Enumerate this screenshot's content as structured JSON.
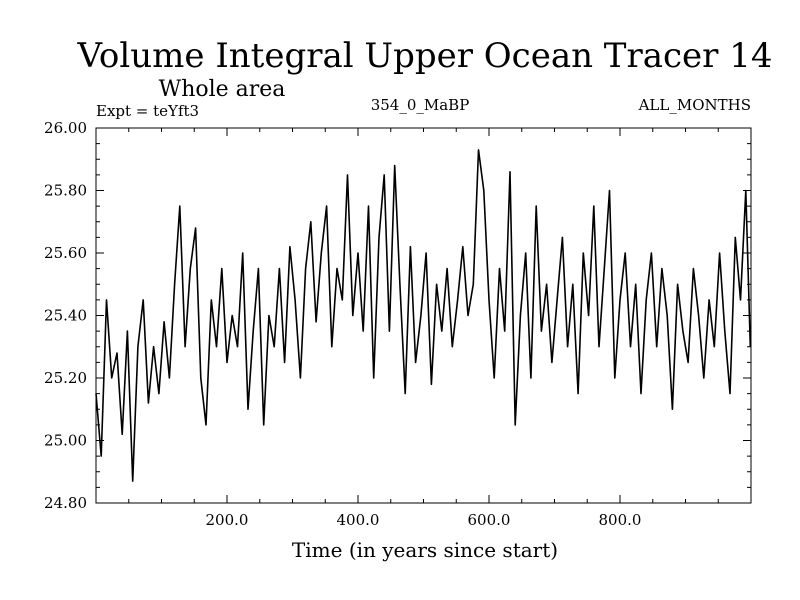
{
  "chart_data": {
    "type": "line",
    "title": "Volume Integral Upper Ocean Tracer 14",
    "subtitle": "Whole area",
    "experiment_label": "Expt = teYft3",
    "period_label": "354_0_MaBP",
    "months_label": "ALL_MONTHS",
    "xlabel": "Time (in years since start)",
    "ylabel": "",
    "xlim": [
      0,
      1000
    ],
    "ylim": [
      24.8,
      26.0
    ],
    "x_ticks": [
      200,
      400,
      600,
      800
    ],
    "x_tick_labels": [
      "200.0",
      "400.0",
      "600.0",
      "800.0"
    ],
    "y_ticks": [
      24.8,
      25.0,
      25.2,
      25.4,
      25.6,
      25.8,
      26.0
    ],
    "y_tick_labels": [
      "24.80",
      "25.00",
      "25.20",
      "25.40",
      "25.60",
      "25.80",
      "26.00"
    ],
    "series": [
      {
        "name": "Tracer 14",
        "x": [
          0,
          8,
          16,
          24,
          32,
          40,
          48,
          56,
          64,
          72,
          80,
          88,
          96,
          104,
          112,
          120,
          128,
          136,
          144,
          152,
          160,
          168,
          176,
          184,
          192,
          200,
          208,
          216,
          224,
          232,
          240,
          248,
          256,
          264,
          272,
          280,
          288,
          296,
          304,
          312,
          320,
          328,
          336,
          344,
          352,
          360,
          368,
          376,
          384,
          392,
          400,
          408,
          416,
          424,
          432,
          440,
          448,
          456,
          464,
          472,
          480,
          488,
          496,
          504,
          512,
          520,
          528,
          536,
          544,
          552,
          560,
          568,
          576,
          584,
          592,
          600,
          608,
          616,
          624,
          632,
          640,
          648,
          656,
          664,
          672,
          680,
          688,
          696,
          704,
          712,
          720,
          728,
          736,
          744,
          752,
          760,
          768,
          776,
          784,
          792,
          800,
          808,
          816,
          824,
          832,
          840,
          848,
          856,
          864,
          872,
          880,
          888,
          896,
          904,
          912,
          920,
          928,
          936,
          944,
          952,
          960,
          968,
          976,
          984,
          992,
          999
        ],
        "values": [
          25.15,
          24.95,
          25.45,
          25.2,
          25.28,
          25.02,
          25.35,
          24.87,
          25.3,
          25.45,
          25.12,
          25.3,
          25.15,
          25.38,
          25.2,
          25.5,
          25.75,
          25.3,
          25.55,
          25.68,
          25.2,
          25.05,
          25.45,
          25.3,
          25.55,
          25.25,
          25.4,
          25.3,
          25.6,
          25.1,
          25.35,
          25.55,
          25.05,
          25.4,
          25.3,
          25.55,
          25.25,
          25.62,
          25.45,
          25.2,
          25.55,
          25.7,
          25.38,
          25.6,
          25.75,
          25.3,
          25.55,
          25.45,
          25.85,
          25.4,
          25.6,
          25.35,
          25.75,
          25.2,
          25.65,
          25.85,
          25.35,
          25.88,
          25.5,
          25.15,
          25.62,
          25.25,
          25.4,
          25.6,
          25.18,
          25.5,
          25.35,
          25.55,
          25.3,
          25.45,
          25.62,
          25.4,
          25.5,
          25.93,
          25.8,
          25.45,
          25.2,
          25.55,
          25.35,
          25.86,
          25.05,
          25.4,
          25.6,
          25.2,
          25.75,
          25.35,
          25.5,
          25.25,
          25.45,
          25.65,
          25.3,
          25.5,
          25.15,
          25.6,
          25.4,
          25.75,
          25.3,
          25.55,
          25.8,
          25.2,
          25.45,
          25.6,
          25.3,
          25.5,
          25.15,
          25.45,
          25.6,
          25.3,
          25.55,
          25.4,
          25.1,
          25.5,
          25.35,
          25.25,
          25.55,
          25.4,
          25.2,
          25.45,
          25.3,
          25.6,
          25.35,
          25.15,
          25.65,
          25.45,
          25.8,
          25.3
        ]
      }
    ]
  }
}
